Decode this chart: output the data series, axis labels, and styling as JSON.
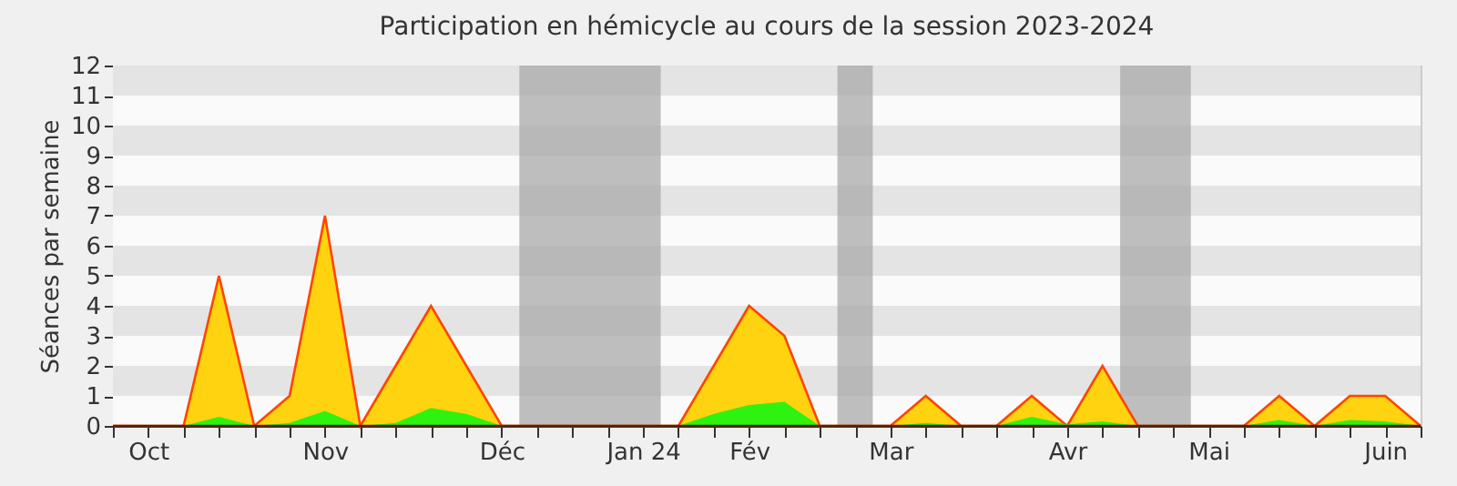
{
  "chart_data": {
    "type": "area",
    "title": "Participation en hémicycle au cours de la session 2023-2024",
    "ylabel": "Séances par semaine",
    "x": [
      "2023-10-02",
      "2023-10-09",
      "2023-10-16",
      "2023-10-23",
      "2023-10-30",
      "2023-11-06",
      "2023-11-13",
      "2023-11-20",
      "2023-11-27",
      "2023-12-04",
      "2023-12-11",
      "2023-12-18",
      "2023-12-25",
      "2024-01-01",
      "2024-01-08",
      "2024-01-15",
      "2024-01-22",
      "2024-01-29",
      "2024-02-05",
      "2024-02-12",
      "2024-02-19",
      "2024-02-26",
      "2024-03-04",
      "2024-03-11",
      "2024-03-18",
      "2024-03-25",
      "2024-04-01",
      "2024-04-08",
      "2024-04-15",
      "2024-04-22",
      "2024-04-29",
      "2024-05-06",
      "2024-05-13",
      "2024-05-20",
      "2024-05-27",
      "2024-06-03",
      "2024-06-10",
      "2024-06-17"
    ],
    "series": [
      {
        "color": "#ffd30f",
        "values": [
          0,
          0,
          0,
          5,
          0,
          1,
          7,
          0,
          2,
          4,
          2,
          0,
          0,
          0,
          0,
          0,
          0,
          2,
          4,
          3,
          0,
          0,
          0,
          1,
          0,
          0,
          1,
          0,
          2,
          0,
          0,
          0,
          0,
          1,
          0,
          1,
          1,
          0
        ]
      },
      {
        "color": "#2ef20f",
        "values": [
          0,
          0,
          0,
          0.3,
          0,
          0.1,
          0.5,
          0,
          0.1,
          0.6,
          0.4,
          0,
          0,
          0,
          0,
          0,
          0,
          0.4,
          0.7,
          0.8,
          0,
          0,
          0,
          0.1,
          0,
          0,
          0.3,
          0.05,
          0.15,
          0,
          0,
          0,
          0,
          0.2,
          0,
          0.2,
          0.15,
          0
        ]
      }
    ],
    "xlim": [
      "2023-10-02",
      "2024-06-17"
    ],
    "xticks": [
      {
        "value": "2023-10-02",
        "label": null
      },
      {
        "value": "2023-10-09",
        "label": "Oct"
      },
      {
        "value": "2023-10-16",
        "label": null
      },
      {
        "value": "2023-10-23",
        "label": null
      },
      {
        "value": "2023-10-30",
        "label": null
      },
      {
        "value": "2023-11-06",
        "label": null
      },
      {
        "value": "2023-11-13",
        "label": "Nov"
      },
      {
        "value": "2023-11-20",
        "label": null
      },
      {
        "value": "2023-11-27",
        "label": null
      },
      {
        "value": "2023-12-04",
        "label": null
      },
      {
        "value": "2023-12-11",
        "label": null
      },
      {
        "value": "2023-12-18",
        "label": "Déc"
      },
      {
        "value": "2023-12-25",
        "label": null
      },
      {
        "value": "2024-01-01",
        "label": null
      },
      {
        "value": "2024-01-08",
        "label": null
      },
      {
        "value": "2024-01-15",
        "label": "Jan 24"
      },
      {
        "value": "2024-01-22",
        "label": null
      },
      {
        "value": "2024-01-29",
        "label": null
      },
      {
        "value": "2024-02-05",
        "label": "Fév"
      },
      {
        "value": "2024-02-12",
        "label": null
      },
      {
        "value": "2024-02-19",
        "label": null
      },
      {
        "value": "2024-02-26",
        "label": null
      },
      {
        "value": "2024-03-04",
        "label": "Mar"
      },
      {
        "value": "2024-03-11",
        "label": null
      },
      {
        "value": "2024-03-18",
        "label": null
      },
      {
        "value": "2024-03-25",
        "label": null
      },
      {
        "value": "2024-04-01",
        "label": null
      },
      {
        "value": "2024-04-08",
        "label": "Avr"
      },
      {
        "value": "2024-04-15",
        "label": null
      },
      {
        "value": "2024-04-22",
        "label": null
      },
      {
        "value": "2024-04-29",
        "label": null
      },
      {
        "value": "2024-05-06",
        "label": "Mai"
      },
      {
        "value": "2024-05-13",
        "label": null
      },
      {
        "value": "2024-05-20",
        "label": null
      },
      {
        "value": "2024-05-27",
        "label": null
      },
      {
        "value": "2024-06-03",
        "label": null
      },
      {
        "value": "2024-06-10",
        "label": "Juin"
      },
      {
        "value": "2024-06-17",
        "label": null
      }
    ],
    "ylim": [
      0,
      12
    ],
    "yticks": [
      0,
      1,
      2,
      3,
      4,
      5,
      6,
      7,
      8,
      9,
      10,
      11,
      12
    ],
    "bands": [
      {
        "axis": "x",
        "from": "2023-12-21T12:00",
        "to": "2024-01-18T12:00",
        "color": "#aaaaaa"
      },
      {
        "axis": "x",
        "from": "2024-02-22T12:00",
        "to": "2024-02-29T12:00",
        "color": "#aaaaaa"
      },
      {
        "axis": "x",
        "from": "2024-04-18T12:00",
        "to": "2024-05-02T12:00",
        "color": "#aaaaaa"
      }
    ]
  }
}
